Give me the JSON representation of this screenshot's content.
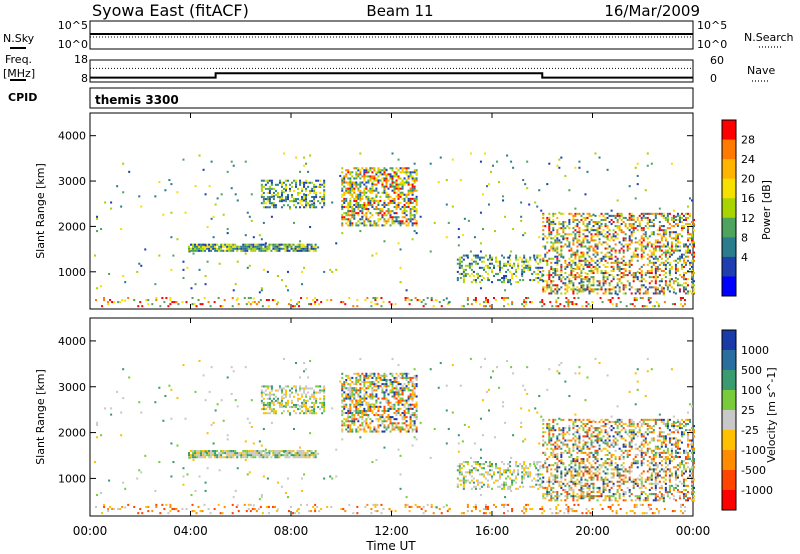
{
  "header": {
    "title": "Syowa East (fitACF)",
    "beam": "Beam 11",
    "date": "16/Mar/2009"
  },
  "sky_panel": {
    "left_label": "N.Sky",
    "left_top": "10^5",
    "left_bottom": "10^0",
    "right_label": "N.Search",
    "right_top": "10^5",
    "right_bottom": "10^0"
  },
  "freq_panel": {
    "left_label_1": "Freq.",
    "left_label_2": "[MHz]",
    "left_top": "18",
    "left_bottom": "8",
    "right_label": "Nave",
    "right_top": "60",
    "right_bottom": "0",
    "freq_steps": [
      {
        "t0": 0,
        "t1": 5,
        "mhz": 10.0
      },
      {
        "t0": 5,
        "t1": 18,
        "mhz": 12.0
      },
      {
        "t0": 18,
        "t1": 24,
        "mhz": 10.0
      }
    ],
    "nave_level": 0.62
  },
  "cpid": {
    "label": "CPID",
    "program": "themis 3300"
  },
  "chart_data": [
    {
      "type": "heatmap",
      "name": "power",
      "ylabel": "Slant Range [km]",
      "ylim": [
        180,
        4500
      ],
      "yticks": [
        1000,
        2000,
        3000,
        4000
      ],
      "xlabel": "Time UT",
      "xlim": [
        0,
        24
      ],
      "xticks": [
        {
          "t": 0,
          "label": "00:00"
        },
        {
          "t": 4,
          "label": "04:00"
        },
        {
          "t": 8,
          "label": "08:00"
        },
        {
          "t": 12,
          "label": "12:00"
        },
        {
          "t": 16,
          "label": "16:00"
        },
        {
          "t": 20,
          "label": "20:00"
        },
        {
          "t": 24,
          "label": "00:00"
        }
      ],
      "colorbar": {
        "label": "Power [dB]",
        "ticks": [
          "28",
          "24",
          "20",
          "16",
          "12",
          "8",
          "4"
        ],
        "colors": [
          "#ff0000",
          "#ff7a00",
          "#ffb400",
          "#f5e000",
          "#a8d400",
          "#4ea35e",
          "#2b7d8e",
          "#1f3fb0",
          "#0000ff"
        ]
      }
    },
    {
      "type": "heatmap",
      "name": "velocity",
      "ylabel": "Slant Range [km]",
      "ylim": [
        180,
        4500
      ],
      "yticks": [
        1000,
        2000,
        3000,
        4000
      ],
      "colorbar": {
        "label": "Velocity [m s^-1]",
        "ticks": [
          "1000",
          "500",
          "100",
          "25",
          "-25",
          "-100",
          "-500",
          "-1000"
        ],
        "colors": [
          "#1a3aa8",
          "#2a6ea0",
          "#3a9a70",
          "#7acb3c",
          "#c8c8c8",
          "#ffc000",
          "#ff8c00",
          "#ff4500",
          "#ff0000"
        ]
      }
    }
  ],
  "scatter_regions": [
    {
      "t0": 0.2,
      "t1": 23.9,
      "r0": 220,
      "r1": 420,
      "density": 0.18,
      "pal": "low"
    },
    {
      "t0": 3.9,
      "t1": 9.0,
      "r0": 1440,
      "r1": 1600,
      "density": 0.85,
      "pal": "mid"
    },
    {
      "t0": 6.8,
      "t1": 9.3,
      "r0": 2400,
      "r1": 3000,
      "density": 0.45,
      "pal": "mid"
    },
    {
      "t0": 10.0,
      "t1": 13.0,
      "r0": 2000,
      "r1": 3300,
      "density": 0.55,
      "pal": "hot"
    },
    {
      "t0": 14.6,
      "t1": 18.0,
      "r0": 750,
      "r1": 1350,
      "density": 0.35,
      "pal": "mid"
    },
    {
      "t0": 18.0,
      "t1": 24.0,
      "r0": 500,
      "r1": 2300,
      "density": 0.42,
      "pal": "hot"
    },
    {
      "t0": 0.0,
      "t1": 24.0,
      "r0": 300,
      "r1": 3600,
      "density": 0.015,
      "pal": "mid"
    }
  ]
}
